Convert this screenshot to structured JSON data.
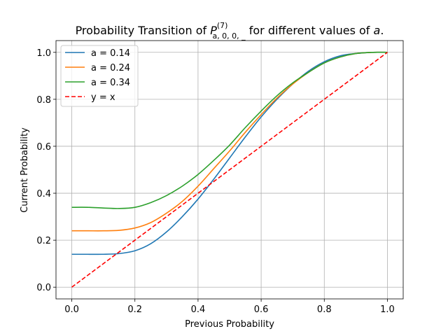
{
  "chart_data": {
    "type": "line",
    "title_prefix": "Probability Transition of ",
    "title_symbol": "P",
    "title_superscript": "(7)",
    "title_subscript": "a, 0, 0, _",
    "title_suffix": " for different values of ",
    "title_variable": "a",
    "title_end": ".",
    "xlabel": "Previous Probability",
    "ylabel": "Current Probability",
    "xlim": [
      -0.05,
      1.05
    ],
    "ylim": [
      -0.05,
      1.05
    ],
    "xticks": [
      "0.0",
      "0.2",
      "0.4",
      "0.6",
      "0.8",
      "1.0"
    ],
    "yticks": [
      "0.0",
      "0.2",
      "0.4",
      "0.6",
      "0.8",
      "1.0"
    ],
    "grid": true,
    "legend_position": "top-left",
    "x": [
      0.0,
      0.05,
      0.1,
      0.15,
      0.2,
      0.25,
      0.3,
      0.35,
      0.4,
      0.45,
      0.5,
      0.55,
      0.6,
      0.65,
      0.7,
      0.75,
      0.8,
      0.85,
      0.9,
      0.95,
      1.0
    ],
    "series": [
      {
        "name": "a = 0.14",
        "color": "#1f77b4",
        "dash": false,
        "values": [
          0.14,
          0.14,
          0.14,
          0.143,
          0.155,
          0.185,
          0.235,
          0.3,
          0.375,
          0.46,
          0.55,
          0.64,
          0.725,
          0.8,
          0.865,
          0.92,
          0.96,
          0.985,
          0.995,
          1.0,
          1.0
        ]
      },
      {
        "name": "a = 0.24",
        "color": "#ff7f0e",
        "dash": false,
        "values": [
          0.24,
          0.24,
          0.24,
          0.242,
          0.252,
          0.275,
          0.315,
          0.365,
          0.43,
          0.505,
          0.58,
          0.66,
          0.735,
          0.805,
          0.865,
          0.915,
          0.955,
          0.98,
          0.995,
          1.0,
          1.0
        ]
      },
      {
        "name": "a = 0.34",
        "color": "#2ca02c",
        "dash": false,
        "values": [
          0.34,
          0.34,
          0.337,
          0.335,
          0.34,
          0.36,
          0.39,
          0.43,
          0.48,
          0.54,
          0.605,
          0.68,
          0.75,
          0.815,
          0.87,
          0.915,
          0.955,
          0.98,
          0.995,
          1.0,
          1.0
        ]
      },
      {
        "name": "y = x",
        "color": "#ff0000",
        "dash": true,
        "values": [
          0.0,
          0.05,
          0.1,
          0.15,
          0.2,
          0.25,
          0.3,
          0.35,
          0.4,
          0.45,
          0.5,
          0.55,
          0.6,
          0.65,
          0.7,
          0.75,
          0.8,
          0.85,
          0.9,
          0.95,
          1.0
        ]
      }
    ]
  }
}
